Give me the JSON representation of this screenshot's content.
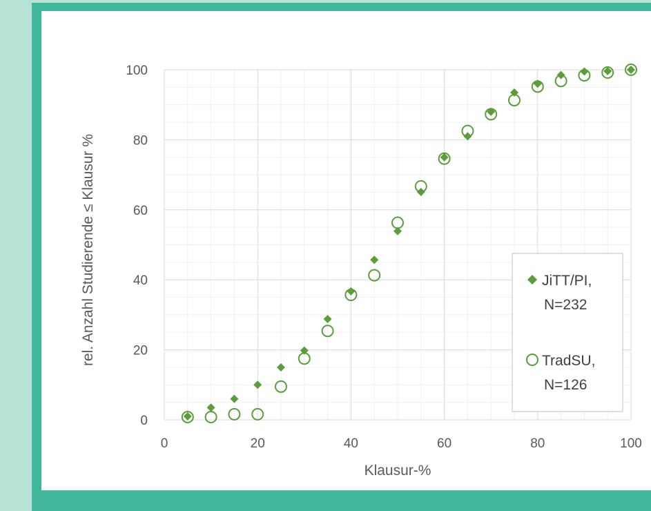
{
  "colors": {
    "page_background": "#b6e3d6",
    "frame": "#41b79b",
    "panel": "#ffffff",
    "series_color": "#5a9e3a",
    "gridline_major": "#d9d9d9",
    "gridline_minor": "#efefef"
  },
  "chart_data": {
    "type": "scatter",
    "xlabel": "Klausur-%",
    "ylabel": "rel. Anzahl Studierende ≤ Klausur %",
    "xlim": [
      0,
      100
    ],
    "ylim": [
      0,
      100
    ],
    "x_ticks": [
      "0",
      "20",
      "40",
      "60",
      "80",
      "100"
    ],
    "y_ticks": [
      "0",
      "20",
      "40",
      "60",
      "80",
      "100"
    ],
    "grid": "major and minor",
    "legend_position": "right",
    "series": [
      {
        "name_lines": [
          "JiTT/PI,",
          "N=232"
        ],
        "marker": "diamond-filled",
        "x": [
          5,
          10,
          15,
          20,
          25,
          30,
          35,
          40,
          45,
          50,
          55,
          60,
          65,
          70,
          75,
          80,
          85,
          90,
          95,
          100
        ],
        "y": [
          1,
          3.5,
          6,
          10,
          15,
          19.8,
          28.8,
          36.7,
          45.7,
          53.9,
          65.1,
          75,
          81,
          88,
          93.5,
          96,
          98.5,
          99.5,
          99.6,
          100
        ]
      },
      {
        "name_lines": [
          "TradSU,",
          "N=126"
        ],
        "marker": "circle-open",
        "x": [
          5,
          10,
          15,
          20,
          25,
          30,
          35,
          40,
          45,
          50,
          55,
          60,
          65,
          70,
          75,
          80,
          85,
          90,
          95,
          100
        ],
        "y": [
          0.8,
          0.8,
          1.6,
          1.6,
          9.5,
          17.5,
          25.4,
          35.7,
          41.3,
          56.3,
          66.7,
          74.6,
          82.5,
          87.3,
          91.3,
          95.2,
          96.8,
          98.4,
          99.2,
          100
        ]
      }
    ]
  }
}
